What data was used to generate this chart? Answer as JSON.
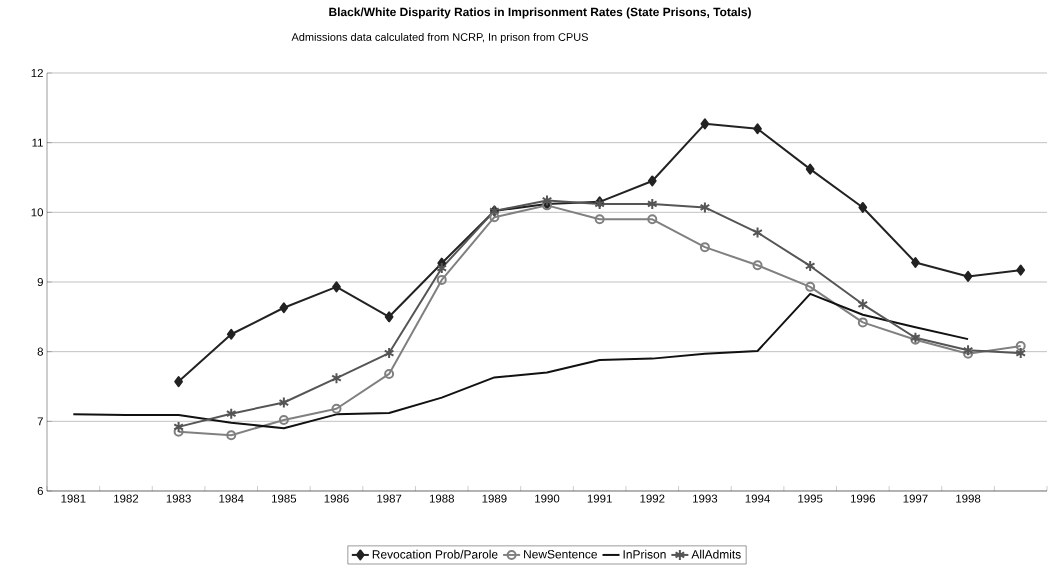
{
  "chart_data": {
    "type": "line",
    "title": "Black/White Disparity Ratios in Imprisonment Rates (State Prisons, Totals)",
    "subtitle": "Admissions data calculated from NCRP, In prison from CPUS",
    "categories": [
      "1981",
      "1982",
      "1983",
      "1984",
      "1985",
      "1986",
      "1987",
      "1988",
      "1989",
      "1990",
      "1991",
      "1992",
      "1993",
      "1994",
      "1995",
      "1996",
      "1997",
      "1998",
      null
    ],
    "series": [
      {
        "name": "Revocation Prob/Parole",
        "color": "#222222",
        "marker": "diamond",
        "values": [
          null,
          null,
          7.57,
          8.25,
          8.63,
          8.93,
          8.5,
          9.27,
          10.02,
          10.12,
          10.15,
          10.45,
          11.27,
          11.2,
          10.62,
          10.07,
          9.28,
          9.08,
          9.17
        ]
      },
      {
        "name": "NewSentence",
        "color": "#808080",
        "marker": "circle",
        "values": [
          null,
          null,
          6.85,
          6.8,
          7.02,
          7.18,
          7.68,
          9.03,
          9.93,
          10.1,
          9.9,
          9.9,
          9.5,
          9.24,
          8.93,
          8.42,
          8.17,
          7.97,
          8.08
        ]
      },
      {
        "name": "InPrison",
        "color": "#111111",
        "marker": "none",
        "values": [
          7.1,
          7.09,
          7.09,
          6.98,
          6.9,
          7.1,
          7.12,
          7.34,
          7.63,
          7.7,
          7.88,
          7.9,
          7.97,
          8.01,
          8.83,
          8.53,
          8.35,
          8.18,
          null
        ]
      },
      {
        "name": "AllAdmits",
        "color": "#555555",
        "marker": "cross",
        "values": [
          null,
          null,
          6.92,
          7.11,
          7.27,
          7.62,
          7.98,
          9.2,
          10.02,
          10.17,
          10.12,
          10.12,
          10.07,
          9.71,
          9.23,
          8.68,
          8.2,
          8.02,
          7.98
        ]
      }
    ],
    "ylim": [
      6,
      12
    ],
    "yticks": [
      6,
      7,
      8,
      9,
      10,
      11,
      12
    ],
    "grid": "y",
    "legend": "bottom",
    "line_style": "solid"
  }
}
